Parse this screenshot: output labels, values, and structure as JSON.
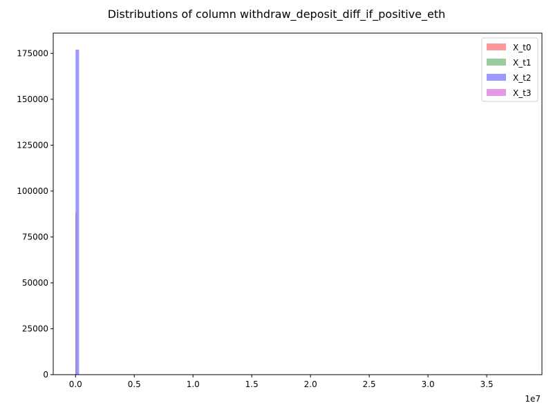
{
  "chart_data": {
    "type": "bar",
    "title": "Distributions of column withdraw_deposit_diff_if_positive_eth",
    "xlabel": "",
    "ylabel": "",
    "x_offset_label": "1e7",
    "x_tick_labels": [
      "0.0",
      "0.5",
      "1.0",
      "1.5",
      "2.0",
      "2.5",
      "3.0",
      "3.5"
    ],
    "x_ticks": [
      0,
      0.5,
      1.0,
      1.5,
      2.0,
      2.5,
      3.0,
      3.5
    ],
    "y_tick_labels": [
      "0",
      "25000",
      "50000",
      "75000",
      "100000",
      "125000",
      "150000",
      "175000"
    ],
    "y_ticks": [
      0,
      25000,
      50000,
      75000,
      100000,
      125000,
      150000,
      175000
    ],
    "xlim": [
      -0.19,
      3.97
    ],
    "ylim": [
      0,
      186000
    ],
    "grid": false,
    "legend_position": "top-right",
    "series": [
      {
        "name": "X_t0",
        "color": "#ff0000",
        "alpha": 0.4,
        "bins": [
          [
            0.0,
            0.003
          ]
        ],
        "values": [
          88000
        ]
      },
      {
        "name": "X_t1",
        "color": "#008000",
        "alpha": 0.4,
        "bins": [
          [
            0.0,
            0.02
          ]
        ],
        "values": [
          0
        ]
      },
      {
        "name": "X_t2",
        "color": "#0000ff",
        "alpha": 0.4,
        "bins": [
          [
            0.0,
            0.03
          ]
        ],
        "values": [
          177000
        ]
      },
      {
        "name": "X_t3",
        "color": "#cc33cc",
        "alpha": 0.5,
        "bins": [
          [
            0.0,
            0.003
          ]
        ],
        "values": [
          0
        ]
      }
    ]
  }
}
